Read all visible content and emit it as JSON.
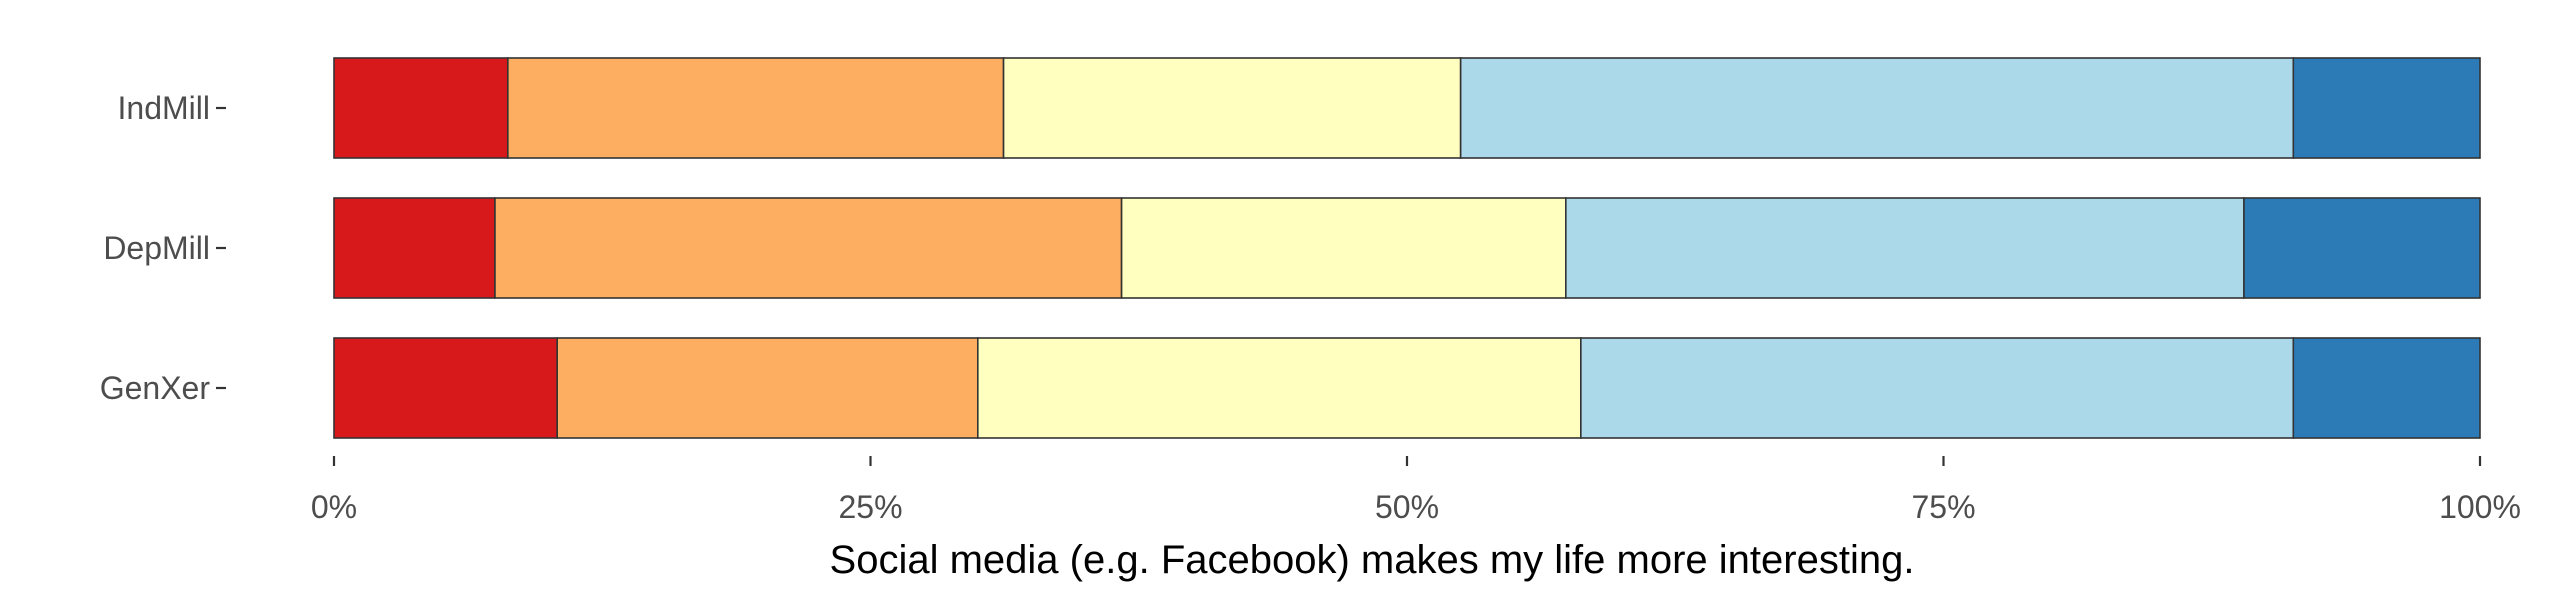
{
  "chart_data": {
    "type": "bar",
    "orientation": "horizontal",
    "stacked": true,
    "normalized": true,
    "title": "",
    "xlabel": "Social media (e.g. Facebook) makes my life more interesting.",
    "ylabel": "",
    "xlim": [
      0,
      1
    ],
    "x_ticks": [
      0,
      0.25,
      0.5,
      0.75,
      1
    ],
    "x_tick_labels": [
      "0%",
      "25%",
      "50%",
      "75%",
      "100%"
    ],
    "categories": [
      "IndMill",
      "DepMill",
      "GenXer"
    ],
    "series": [
      {
        "color": "#d7191c",
        "values": [
          0.081,
          0.075,
          0.104
        ]
      },
      {
        "color": "#fdae61",
        "values": [
          0.231,
          0.292,
          0.196
        ]
      },
      {
        "color": "#ffffbf",
        "values": [
          0.213,
          0.207,
          0.281
        ]
      },
      {
        "color": "#abd9e9",
        "values": [
          0.388,
          0.316,
          0.332
        ]
      },
      {
        "color": "#2c7bb6",
        "values": [
          0.087,
          0.11,
          0.087
        ]
      }
    ],
    "grid": false,
    "legend": "none"
  }
}
